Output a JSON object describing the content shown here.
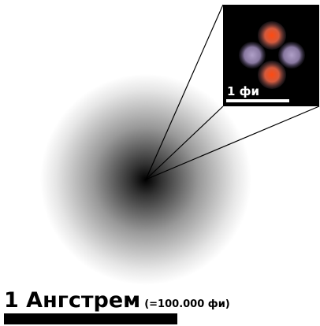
{
  "inset": {
    "scale_label": "1 фи"
  },
  "scale": {
    "label": "1 Ангстрем",
    "note": "(=100.000 фи)"
  }
}
